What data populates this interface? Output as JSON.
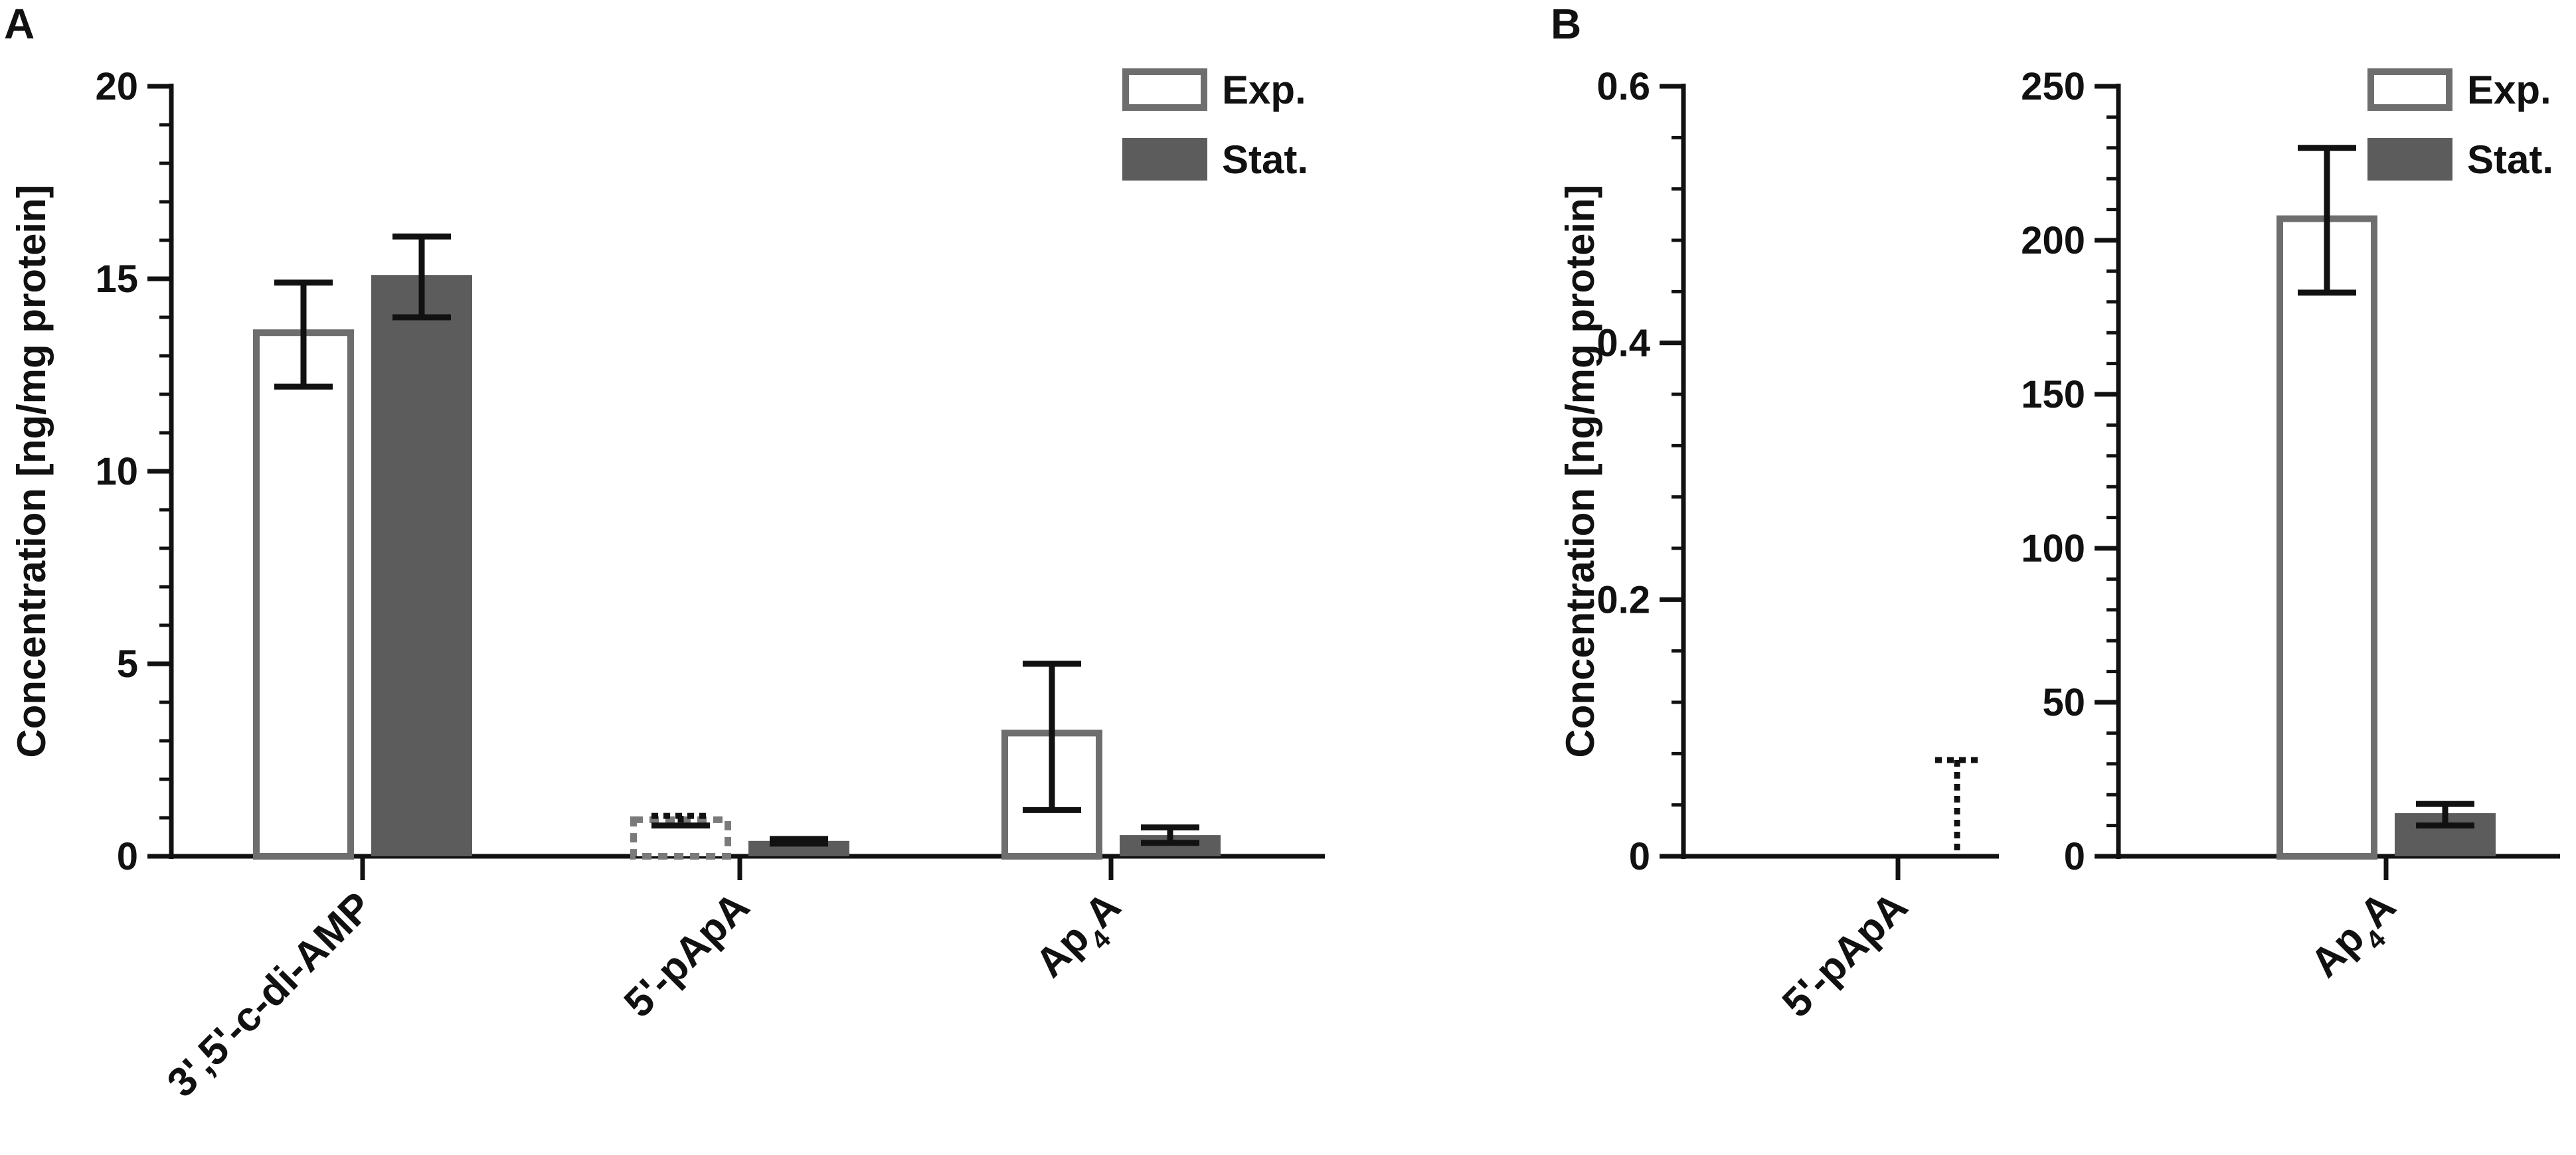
{
  "colors": {
    "exp_edge": "#6e6e6e",
    "stat_fill": "#5c5c5c",
    "axis": "#111111",
    "error": "#111111"
  },
  "legend": {
    "exp_label": "Exp.",
    "stat_label": "Stat."
  },
  "chart_data": [
    {
      "panel": "A",
      "type": "bar",
      "ylabel": "Concentration [ng/mg protein]",
      "ylim": [
        0,
        20
      ],
      "yticks": [
        0,
        5,
        10,
        15,
        20
      ],
      "minor_ticks_per_major": 4,
      "categories": [
        "3',5'-c-di-AMP",
        "5'-pApA",
        "Ap4A"
      ],
      "series": [
        {
          "name": "Exp.",
          "style": "open",
          "values": [
            13.6,
            0.95,
            3.2
          ],
          "err_low": [
            12.2,
            0.8,
            1.2
          ],
          "err_high": [
            14.9,
            1.05,
            5.0
          ],
          "dashed": [
            false,
            true,
            false
          ]
        },
        {
          "name": "Stat.",
          "style": "filled",
          "values": [
            15.1,
            0.4,
            0.55
          ],
          "err_low": [
            14.0,
            0.33,
            0.35
          ],
          "err_high": [
            16.1,
            0.45,
            0.75
          ],
          "dashed": [
            false,
            false,
            false
          ]
        }
      ],
      "legend_position": "top-right"
    },
    {
      "panel": "B",
      "type": "bar",
      "ylabel": "Concentration [ng/mg protein]",
      "ylim": [
        0,
        0.6
      ],
      "yticks": [
        0,
        0.2,
        0.4,
        0.6
      ],
      "ytick_labels": [
        "0",
        "0.2",
        "0.4",
        "0.6"
      ],
      "minor_ticks_per_major": 4,
      "categories": [
        "5'-pApA"
      ],
      "series": [
        {
          "name": "Exp.",
          "style": "open",
          "values": [
            0
          ],
          "err_low": [
            0
          ],
          "err_high": [
            0
          ],
          "dashed": [
            false
          ]
        },
        {
          "name": "Stat.",
          "style": "dotted-error-only",
          "values": [
            0
          ],
          "err_low": [
            0
          ],
          "err_high": [
            0.075
          ],
          "dashed": [
            true
          ]
        }
      ]
    },
    {
      "panel": "B",
      "type": "bar",
      "ylim": [
        0,
        250
      ],
      "yticks": [
        0,
        50,
        100,
        150,
        200,
        250
      ],
      "minor_ticks_per_major": 4,
      "categories": [
        "Ap4A"
      ],
      "series": [
        {
          "name": "Exp.",
          "style": "open",
          "values": [
            207
          ],
          "err_low": [
            183
          ],
          "err_high": [
            230
          ],
          "dashed": [
            false
          ]
        },
        {
          "name": "Stat.",
          "style": "filled",
          "values": [
            14
          ],
          "err_low": [
            10
          ],
          "err_high": [
            17
          ],
          "dashed": [
            false
          ]
        }
      ],
      "legend_position": "top-right"
    }
  ]
}
